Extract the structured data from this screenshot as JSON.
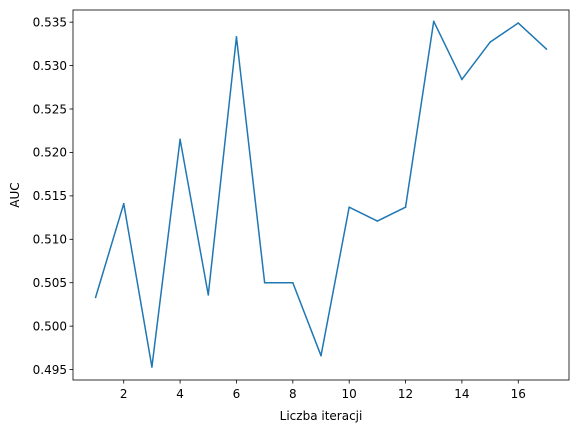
{
  "chart_data": {
    "type": "line",
    "title": "",
    "xlabel": "Liczba iteracji",
    "ylabel": "AUC",
    "xlim": [
      0.2,
      17.8
    ],
    "ylim": [
      0.4938,
      0.5364
    ],
    "x_ticks": [
      2,
      4,
      6,
      8,
      10,
      12,
      14,
      16
    ],
    "x_tick_labels": [
      "2",
      "4",
      "6",
      "8",
      "10",
      "12",
      "14",
      "16"
    ],
    "y_ticks": [
      0.495,
      0.5,
      0.505,
      0.51,
      0.515,
      0.52,
      0.525,
      0.53,
      0.535
    ],
    "y_tick_labels": [
      "0.495",
      "0.500",
      "0.505",
      "0.510",
      "0.515",
      "0.520",
      "0.525",
      "0.530",
      "0.535"
    ],
    "grid": false,
    "series": [
      {
        "color": "#1f77b4",
        "x": [
          1,
          2,
          3,
          4,
          5,
          6,
          7,
          8,
          9,
          10,
          11,
          12,
          13,
          14,
          15,
          16,
          17
        ],
        "values": [
          0.5033,
          0.5141,
          0.4953,
          0.5215,
          0.5036,
          0.5333,
          0.505,
          0.505,
          0.4966,
          0.5137,
          0.5121,
          0.5137,
          0.5351,
          0.5284,
          0.5327,
          0.5349,
          0.5319
        ]
      }
    ]
  }
}
